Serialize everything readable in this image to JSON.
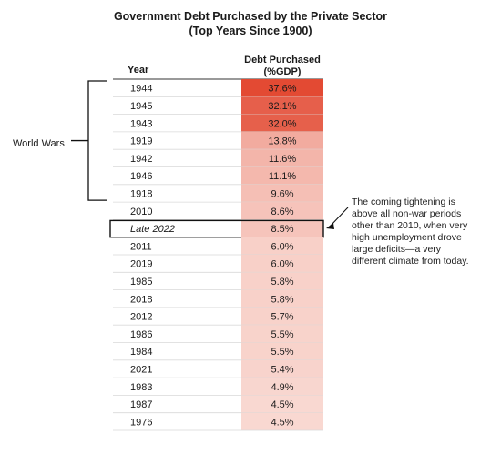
{
  "chart_data": {
    "type": "table",
    "title": [
      "Government Debt Purchased by the Private Sector",
      "(Top Years Since 1900)"
    ],
    "columns": [
      "Year",
      [
        "Debt Purchased",
        "(%GDP)"
      ]
    ],
    "rows": [
      {
        "year": "1944",
        "label": "37.6%",
        "value": 37.6
      },
      {
        "year": "1945",
        "label": "32.1%",
        "value": 32.1
      },
      {
        "year": "1943",
        "label": "32.0%",
        "value": 32.0
      },
      {
        "year": "1919",
        "label": "13.8%",
        "value": 13.8
      },
      {
        "year": "1942",
        "label": "11.6%",
        "value": 11.6
      },
      {
        "year": "1946",
        "label": "11.1%",
        "value": 11.1
      },
      {
        "year": "1918",
        "label": "9.6%",
        "value": 9.6
      },
      {
        "year": "2010",
        "label": "8.6%",
        "value": 8.6
      },
      {
        "year": "Late 2022",
        "label": "8.5%",
        "value": 8.5,
        "highlight": true
      },
      {
        "year": "2011",
        "label": "6.0%",
        "value": 6.0
      },
      {
        "year": "2019",
        "label": "6.0%",
        "value": 6.0
      },
      {
        "year": "1985",
        "label": "5.8%",
        "value": 5.8
      },
      {
        "year": "2018",
        "label": "5.8%",
        "value": 5.8
      },
      {
        "year": "2012",
        "label": "5.7%",
        "value": 5.7
      },
      {
        "year": "1986",
        "label": "5.5%",
        "value": 5.5
      },
      {
        "year": "1984",
        "label": "5.5%",
        "value": 5.5
      },
      {
        "year": "2021",
        "label": "5.4%",
        "value": 5.4
      },
      {
        "year": "1983",
        "label": "4.9%",
        "value": 4.9
      },
      {
        "year": "1987",
        "label": "4.5%",
        "value": 4.5
      },
      {
        "year": "1976",
        "label": "4.5%",
        "value": 4.5
      }
    ],
    "groups": [
      {
        "label": "World Wars",
        "from_year": "1944",
        "to_year": "1918"
      }
    ],
    "annotation": {
      "target_year": "Late 2022",
      "lines": [
        "The coming tightening is",
        "above all non-war periods",
        "other than 2010, when very",
        "high unemployment drove",
        "large deficits—a very",
        "different climate from today."
      ]
    },
    "colors": {
      "max": "#e34a33",
      "min": "#fdf4f0",
      "grid": "#d9d9d9",
      "text": "#1a1a1a"
    }
  }
}
